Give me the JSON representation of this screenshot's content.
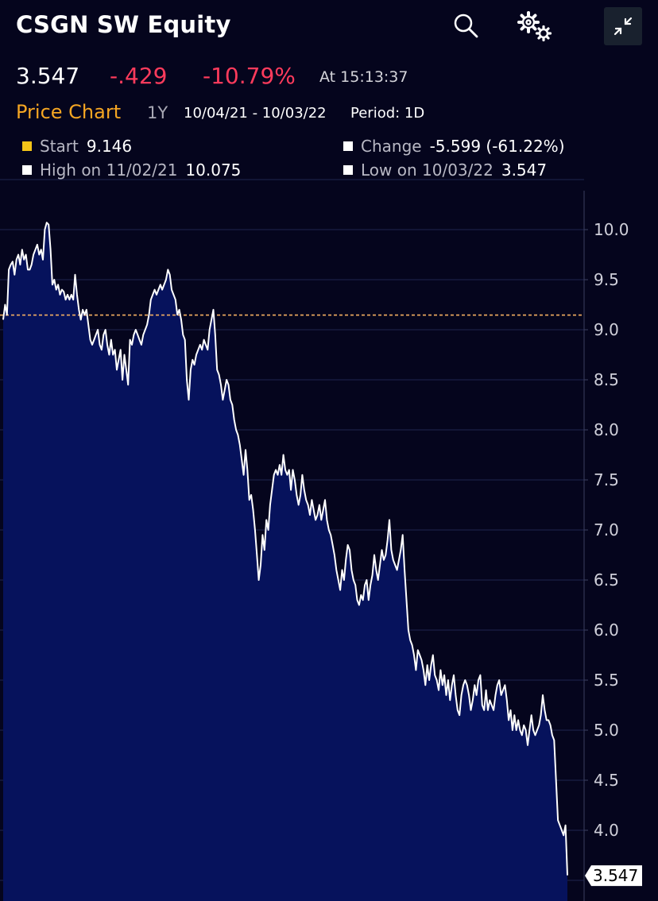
{
  "header": {
    "title": "CSGN SW Equity",
    "last_price": "3.547",
    "change": "-.429",
    "change_pct": "-10.79%",
    "time": "At 15:13:37"
  },
  "chart_header": {
    "title": "Price Chart",
    "range": "1Y",
    "dates": "10/04/21 - 10/03/22",
    "period": "Period: 1D"
  },
  "stats": {
    "start_label": "Start",
    "start_value": "9.146",
    "change_label": "Change",
    "change_value": "-5.599 (-61.22%)",
    "high_label": "High on 11/02/21",
    "high_value": "10.075",
    "low_label": "Low on 10/03/22",
    "low_value": "3.547"
  },
  "icons": {
    "search": "search-icon",
    "settings": "gears-icon",
    "collapse": "collapse-icon"
  },
  "colors": {
    "background": "#05051d",
    "area": "#06125c",
    "line": "#ffffff",
    "negative": "#ff3b5c",
    "accent": "#f5a623",
    "start_marker": "#f5c518"
  },
  "chart_data": {
    "type": "area",
    "y_axis_side": "right",
    "ylim": [
      3.3,
      10.4
    ],
    "yticks": [
      "10.0",
      "9.5",
      "9.0",
      "8.5",
      "8.0",
      "7.5",
      "7.0",
      "6.5",
      "6.0",
      "5.5",
      "5.0",
      "4.5",
      "4.0"
    ],
    "reference_line": 9.146,
    "last_value_label": "3.547",
    "grid": true,
    "values": [
      9.1,
      9.25,
      9.15,
      9.6,
      9.65,
      9.68,
      9.55,
      9.7,
      9.75,
      9.65,
      9.8,
      9.7,
      9.75,
      9.6,
      9.6,
      9.65,
      9.75,
      9.8,
      9.85,
      9.75,
      9.8,
      9.7,
      10.0,
      10.07,
      10.05,
      9.8,
      9.45,
      9.5,
      9.4,
      9.45,
      9.35,
      9.4,
      9.38,
      9.3,
      9.35,
      9.3,
      9.35,
      9.3,
      9.55,
      9.35,
      9.2,
      9.1,
      9.2,
      9.15,
      9.2,
      9.05,
      8.9,
      8.85,
      8.9,
      8.95,
      9.0,
      8.85,
      8.8,
      8.95,
      9.0,
      8.85,
      8.75,
      8.9,
      8.75,
      8.8,
      8.6,
      8.7,
      8.8,
      8.5,
      8.75,
      8.6,
      8.45,
      8.9,
      8.85,
      8.95,
      9.0,
      8.95,
      8.9,
      8.85,
      8.95,
      9.0,
      9.05,
      9.15,
      9.3,
      9.35,
      9.4,
      9.35,
      9.4,
      9.45,
      9.4,
      9.45,
      9.5,
      9.6,
      9.55,
      9.4,
      9.35,
      9.3,
      9.15,
      9.2,
      9.1,
      8.95,
      8.9,
      8.5,
      8.3,
      8.6,
      8.7,
      8.65,
      8.75,
      8.8,
      8.85,
      8.8,
      8.9,
      8.85,
      8.8,
      9.0,
      9.1,
      9.2,
      8.95,
      8.6,
      8.55,
      8.45,
      8.3,
      8.4,
      8.5,
      8.45,
      8.3,
      8.25,
      8.1,
      8.0,
      7.95,
      7.85,
      7.7,
      7.55,
      7.8,
      7.6,
      7.3,
      7.35,
      7.2,
      7.0,
      6.75,
      6.5,
      6.65,
      6.95,
      6.8,
      7.1,
      7.0,
      7.25,
      7.4,
      7.55,
      7.6,
      7.55,
      7.65,
      7.55,
      7.75,
      7.6,
      7.55,
      7.6,
      7.4,
      7.6,
      7.5,
      7.35,
      7.25,
      7.35,
      7.55,
      7.4,
      7.3,
      7.25,
      7.15,
      7.3,
      7.2,
      7.1,
      7.15,
      7.25,
      7.1,
      7.2,
      7.3,
      7.1,
      7.0,
      6.95,
      6.85,
      6.75,
      6.6,
      6.5,
      6.4,
      6.6,
      6.5,
      6.7,
      6.85,
      6.8,
      6.6,
      6.5,
      6.45,
      6.3,
      6.25,
      6.35,
      6.3,
      6.45,
      6.5,
      6.3,
      6.45,
      6.55,
      6.75,
      6.6,
      6.5,
      6.65,
      6.8,
      6.7,
      6.75,
      6.9,
      7.1,
      6.8,
      6.7,
      6.65,
      6.6,
      6.7,
      6.8,
      6.95,
      6.6,
      6.3,
      6.0,
      5.9,
      5.85,
      5.75,
      5.6,
      5.8,
      5.75,
      5.7,
      5.6,
      5.45,
      5.65,
      5.5,
      5.65,
      5.75,
      5.55,
      5.5,
      5.4,
      5.6,
      5.45,
      5.55,
      5.35,
      5.5,
      5.3,
      5.45,
      5.55,
      5.35,
      5.2,
      5.15,
      5.35,
      5.45,
      5.5,
      5.45,
      5.35,
      5.2,
      5.3,
      5.45,
      5.35,
      5.5,
      5.55,
      5.25,
      5.2,
      5.4,
      5.2,
      5.3,
      5.25,
      5.2,
      5.35,
      5.45,
      5.5,
      5.35,
      5.4,
      5.45,
      5.3,
      5.1,
      5.2,
      5.0,
      5.15,
      5.0,
      5.1,
      5.0,
      4.95,
      5.05,
      5.0,
      4.85,
      5.0,
      5.15,
      5.0,
      4.95,
      5.0,
      5.05,
      5.15,
      5.35,
      5.2,
      5.1,
      5.1,
      5.05,
      4.95,
      4.9,
      4.5,
      4.1,
      4.05,
      4.0,
      3.95,
      4.05,
      3.55
    ]
  }
}
